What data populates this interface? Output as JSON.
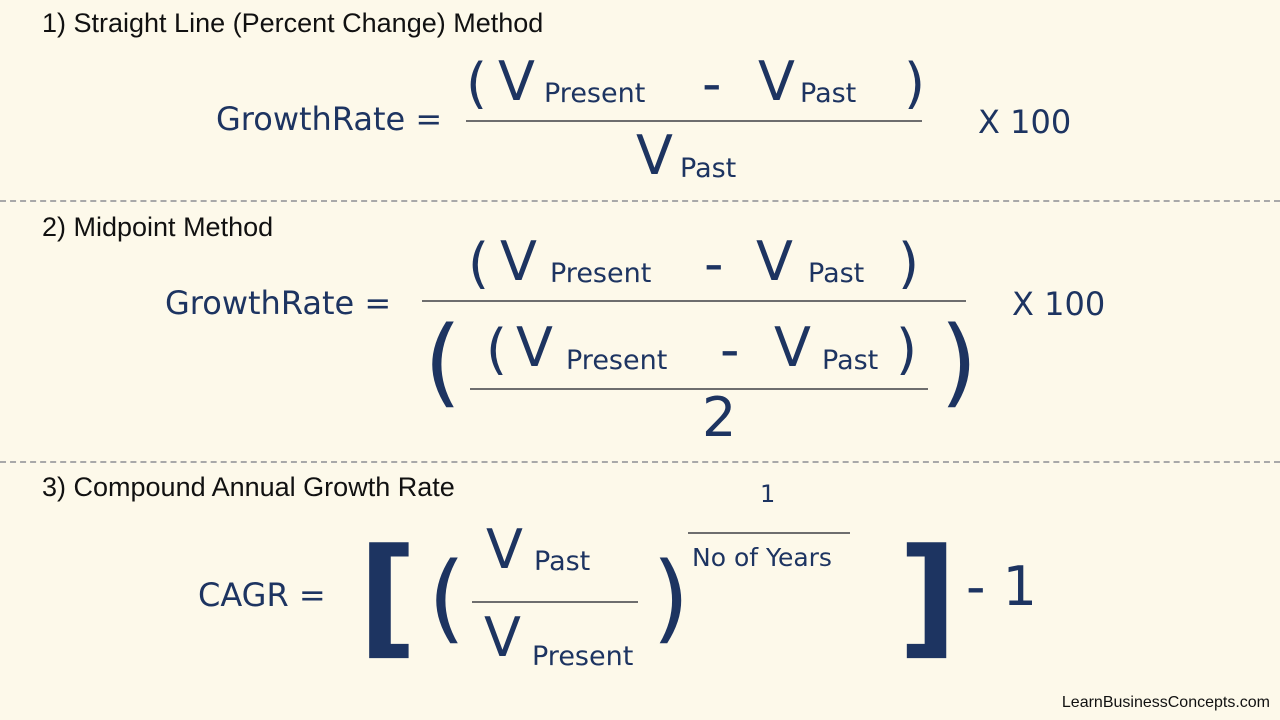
{
  "headings": {
    "method1": "1) Straight Line (Percent Change) Method",
    "method2": "2) Midpoint Method",
    "method3": "3) Compound Annual Growth Rate"
  },
  "formula1": {
    "label": "GrowthRate =",
    "open_paren": "(",
    "v1": "V",
    "sub1": "Present",
    "minus": "-",
    "v2": "V",
    "sub2": "Past",
    "close_paren": ")",
    "den_v": "V",
    "den_sub": "Past",
    "multiplier": "X 100"
  },
  "formula2": {
    "label": "GrowthRate =",
    "open_paren": "(",
    "v1": "V",
    "sub1": "Present",
    "minus": "-",
    "v2": "V",
    "sub2": "Past",
    "close_paren": ")",
    "outer_open": "(",
    "outer_close": ")",
    "inner_open": "(",
    "inner_v1": "V",
    "inner_sub1": "Present",
    "inner_minus": "-",
    "inner_v2": "V",
    "inner_sub2": "Past",
    "inner_close": ")",
    "divisor": "2",
    "multiplier": "X 100"
  },
  "formula3": {
    "label": "CAGR =",
    "open_bracket": "[",
    "open_paren": "(",
    "num_v": "V",
    "num_sub": "Past",
    "den_v": "V",
    "den_sub": "Present",
    "close_paren": ")",
    "exp_num": "1",
    "exp_den": "No of Years",
    "close_bracket": "]",
    "minus_one": "- 1"
  },
  "footer": "LearnBusinessConcepts.com",
  "colors": {
    "background": "#fdf9ea",
    "ink": "#1d3461",
    "heading": "#111111",
    "divider": "#a9a9a9"
  }
}
